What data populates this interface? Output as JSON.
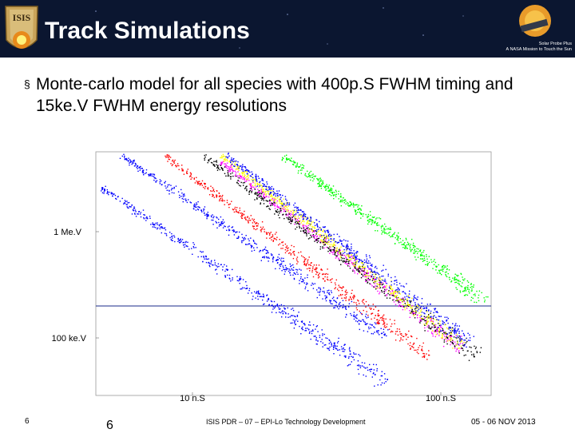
{
  "slide": {
    "title": "Track Simulations",
    "bullet": "Monte-carlo model for all species with 400p.S FWHM timing and 15ke.V FWHM energy resolutions",
    "bullet_mark": "§",
    "logo_right_lines": [
      "Solar Probe Plus",
      "A NASA Mission to Touch the Sun"
    ],
    "footer_page_small": "6",
    "footer_page_big": "6",
    "footer_center": "ISIS PDR – 07 – EPI-Lo Technology Development",
    "footer_date": "05 - 06 NOV 2013",
    "colors": {
      "header_bg": "#0b1630",
      "title": "#ffffff"
    }
  },
  "chart_data": {
    "type": "scatter",
    "title": "",
    "xlabel": "",
    "ylabel": "",
    "xscale": "log",
    "yscale": "log",
    "x_tick_labels": [
      "10 n.S",
      "100 n.S"
    ],
    "y_tick_labels": [
      "1 Me.V",
      "100 ke.V"
    ],
    "reference_line": "horizontal",
    "series": [
      {
        "color": "#0000ff",
        "x": [
          2.6,
          50
        ],
        "y": [
          2000,
          30
        ]
      },
      {
        "color": "#0000ff",
        "x": [
          3.2,
          50
        ],
        "y": [
          4000,
          80
        ]
      },
      {
        "color": "#ff0000",
        "x": [
          5,
          80
        ],
        "y": [
          4000,
          50
        ]
      },
      {
        "color": "#ff00ff",
        "x": [
          9,
          110
        ],
        "y": [
          3500,
          60
        ]
      },
      {
        "color": "#000000",
        "x": [
          7.5,
          130
        ],
        "y": [
          4000,
          50
        ]
      },
      {
        "color": "#ffff00",
        "x": [
          9,
          110
        ],
        "y": [
          4000,
          65
        ]
      },
      {
        "color": "#0000ff",
        "x": [
          9.5,
          120
        ],
        "y": [
          4000,
          70
        ]
      },
      {
        "color": "#00ff00",
        "x": [
          17,
          140
        ],
        "y": [
          4000,
          170
        ]
      }
    ]
  }
}
